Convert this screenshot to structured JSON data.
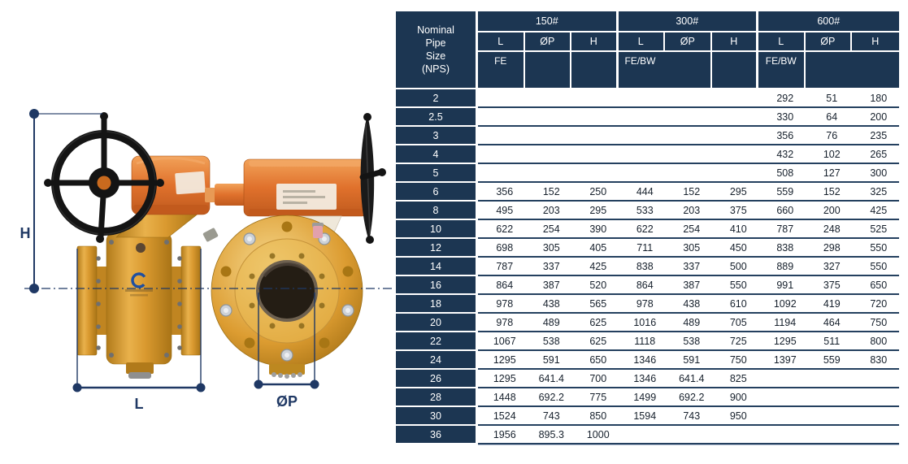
{
  "diagram": {
    "dimension_labels": {
      "height": "H",
      "length": "L",
      "port_diameter": "ØP"
    },
    "colors": {
      "body_yellow": "#D9992F",
      "gearbox_orange": "#E0712C",
      "handwheel_black": "#161616",
      "dimension_navy": "#1F3864",
      "logo_blue": "#1E4FA0"
    }
  },
  "table": {
    "colors": {
      "header_navy": "#1C3652",
      "row_separator": "#24405F",
      "header_text": "#ffffff",
      "cell_text": "#16202c"
    },
    "corner_header": "Nominal Pipe Size (NPS)",
    "corner_lines": [
      "Nominal",
      "Pipe",
      "Size",
      "(NPS)"
    ],
    "groups": [
      {
        "label": "150#",
        "columns": [
          "L",
          "ØP",
          "H"
        ],
        "face_label": "FE"
      },
      {
        "label": "300#",
        "columns": [
          "L",
          "ØP",
          "H"
        ],
        "face_label": "FE/BW"
      },
      {
        "label": "600#",
        "columns": [
          "L",
          "ØP",
          "H"
        ],
        "face_label": "FE/BW"
      }
    ],
    "rows": [
      {
        "nps": "2",
        "values": [
          "",
          "",
          "",
          "",
          "",
          "",
          "292",
          "51",
          "180"
        ]
      },
      {
        "nps": "2.5",
        "values": [
          "",
          "",
          "",
          "",
          "",
          "",
          "330",
          "64",
          "200"
        ]
      },
      {
        "nps": "3",
        "values": [
          "",
          "",
          "",
          "",
          "",
          "",
          "356",
          "76",
          "235"
        ]
      },
      {
        "nps": "4",
        "values": [
          "",
          "",
          "",
          "",
          "",
          "",
          "432",
          "102",
          "265"
        ]
      },
      {
        "nps": "5",
        "values": [
          "",
          "",
          "",
          "",
          "",
          "",
          "508",
          "127",
          "300"
        ]
      },
      {
        "nps": "6",
        "values": [
          "356",
          "152",
          "250",
          "444",
          "152",
          "295",
          "559",
          "152",
          "325"
        ]
      },
      {
        "nps": "8",
        "values": [
          "495",
          "203",
          "295",
          "533",
          "203",
          "375",
          "660",
          "200",
          "425"
        ]
      },
      {
        "nps": "10",
        "values": [
          "622",
          "254",
          "390",
          "622",
          "254",
          "410",
          "787",
          "248",
          "525"
        ]
      },
      {
        "nps": "12",
        "values": [
          "698",
          "305",
          "405",
          "711",
          "305",
          "450",
          "838",
          "298",
          "550"
        ]
      },
      {
        "nps": "14",
        "values": [
          "787",
          "337",
          "425",
          "838",
          "337",
          "500",
          "889",
          "327",
          "550"
        ]
      },
      {
        "nps": "16",
        "values": [
          "864",
          "387",
          "520",
          "864",
          "387",
          "550",
          "991",
          "375",
          "650"
        ]
      },
      {
        "nps": "18",
        "values": [
          "978",
          "438",
          "565",
          "978",
          "438",
          "610",
          "1092",
          "419",
          "720"
        ]
      },
      {
        "nps": "20",
        "values": [
          "978",
          "489",
          "625",
          "1016",
          "489",
          "705",
          "1194",
          "464",
          "750"
        ]
      },
      {
        "nps": "22",
        "values": [
          "1067",
          "538",
          "625",
          "1118",
          "538",
          "725",
          "1295",
          "511",
          "800"
        ]
      },
      {
        "nps": "24",
        "values": [
          "1295",
          "591",
          "650",
          "1346",
          "591",
          "750",
          "1397",
          "559",
          "830"
        ]
      },
      {
        "nps": "26",
        "values": [
          "1295",
          "641.4",
          "700",
          "1346",
          "641.4",
          "825",
          "",
          "",
          ""
        ]
      },
      {
        "nps": "28",
        "values": [
          "1448",
          "692.2",
          "775",
          "1499",
          "692.2",
          "900",
          "",
          "",
          ""
        ]
      },
      {
        "nps": "30",
        "values": [
          "1524",
          "743",
          "850",
          "1594",
          "743",
          "950",
          "",
          "",
          ""
        ]
      },
      {
        "nps": "36",
        "values": [
          "1956",
          "895.3",
          "1000",
          "",
          "",
          "",
          "",
          "",
          ""
        ]
      }
    ]
  }
}
